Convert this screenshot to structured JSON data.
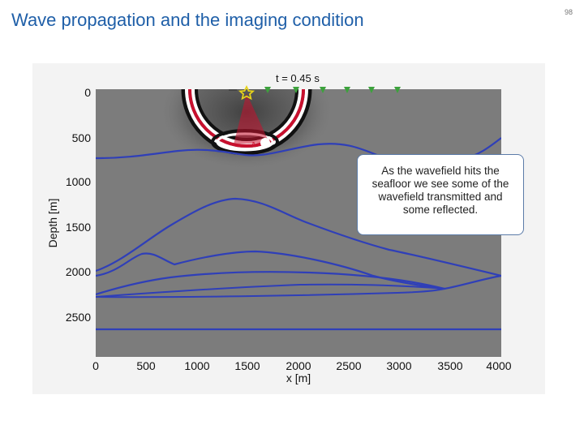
{
  "slide": {
    "title": "Wave propagation and the imaging condition",
    "page_number": "98"
  },
  "figure": {
    "time_label": "t = 0.45 s",
    "xlabel": "x [m]",
    "ylabel": "Depth [m]",
    "x_ticks": [
      "0",
      "500",
      "1000",
      "1500",
      "2000",
      "2500",
      "3000",
      "3500",
      "4000"
    ],
    "y_ticks": [
      "0",
      "500",
      "1000",
      "1500",
      "2000",
      "2500"
    ],
    "source_icon": "star-icon",
    "receiver_icon": "triangle-icon",
    "colors": {
      "background_model": "#7c7c7c",
      "interfaces": "#2f3fb8",
      "wavefront_red": "#c8102e",
      "source": "#e6d21a",
      "receiver": "#3ca23c"
    }
  },
  "callout": {
    "text": "As the wavefield hits the seafloor we see some of the wavefield transmitted and some reflected."
  }
}
